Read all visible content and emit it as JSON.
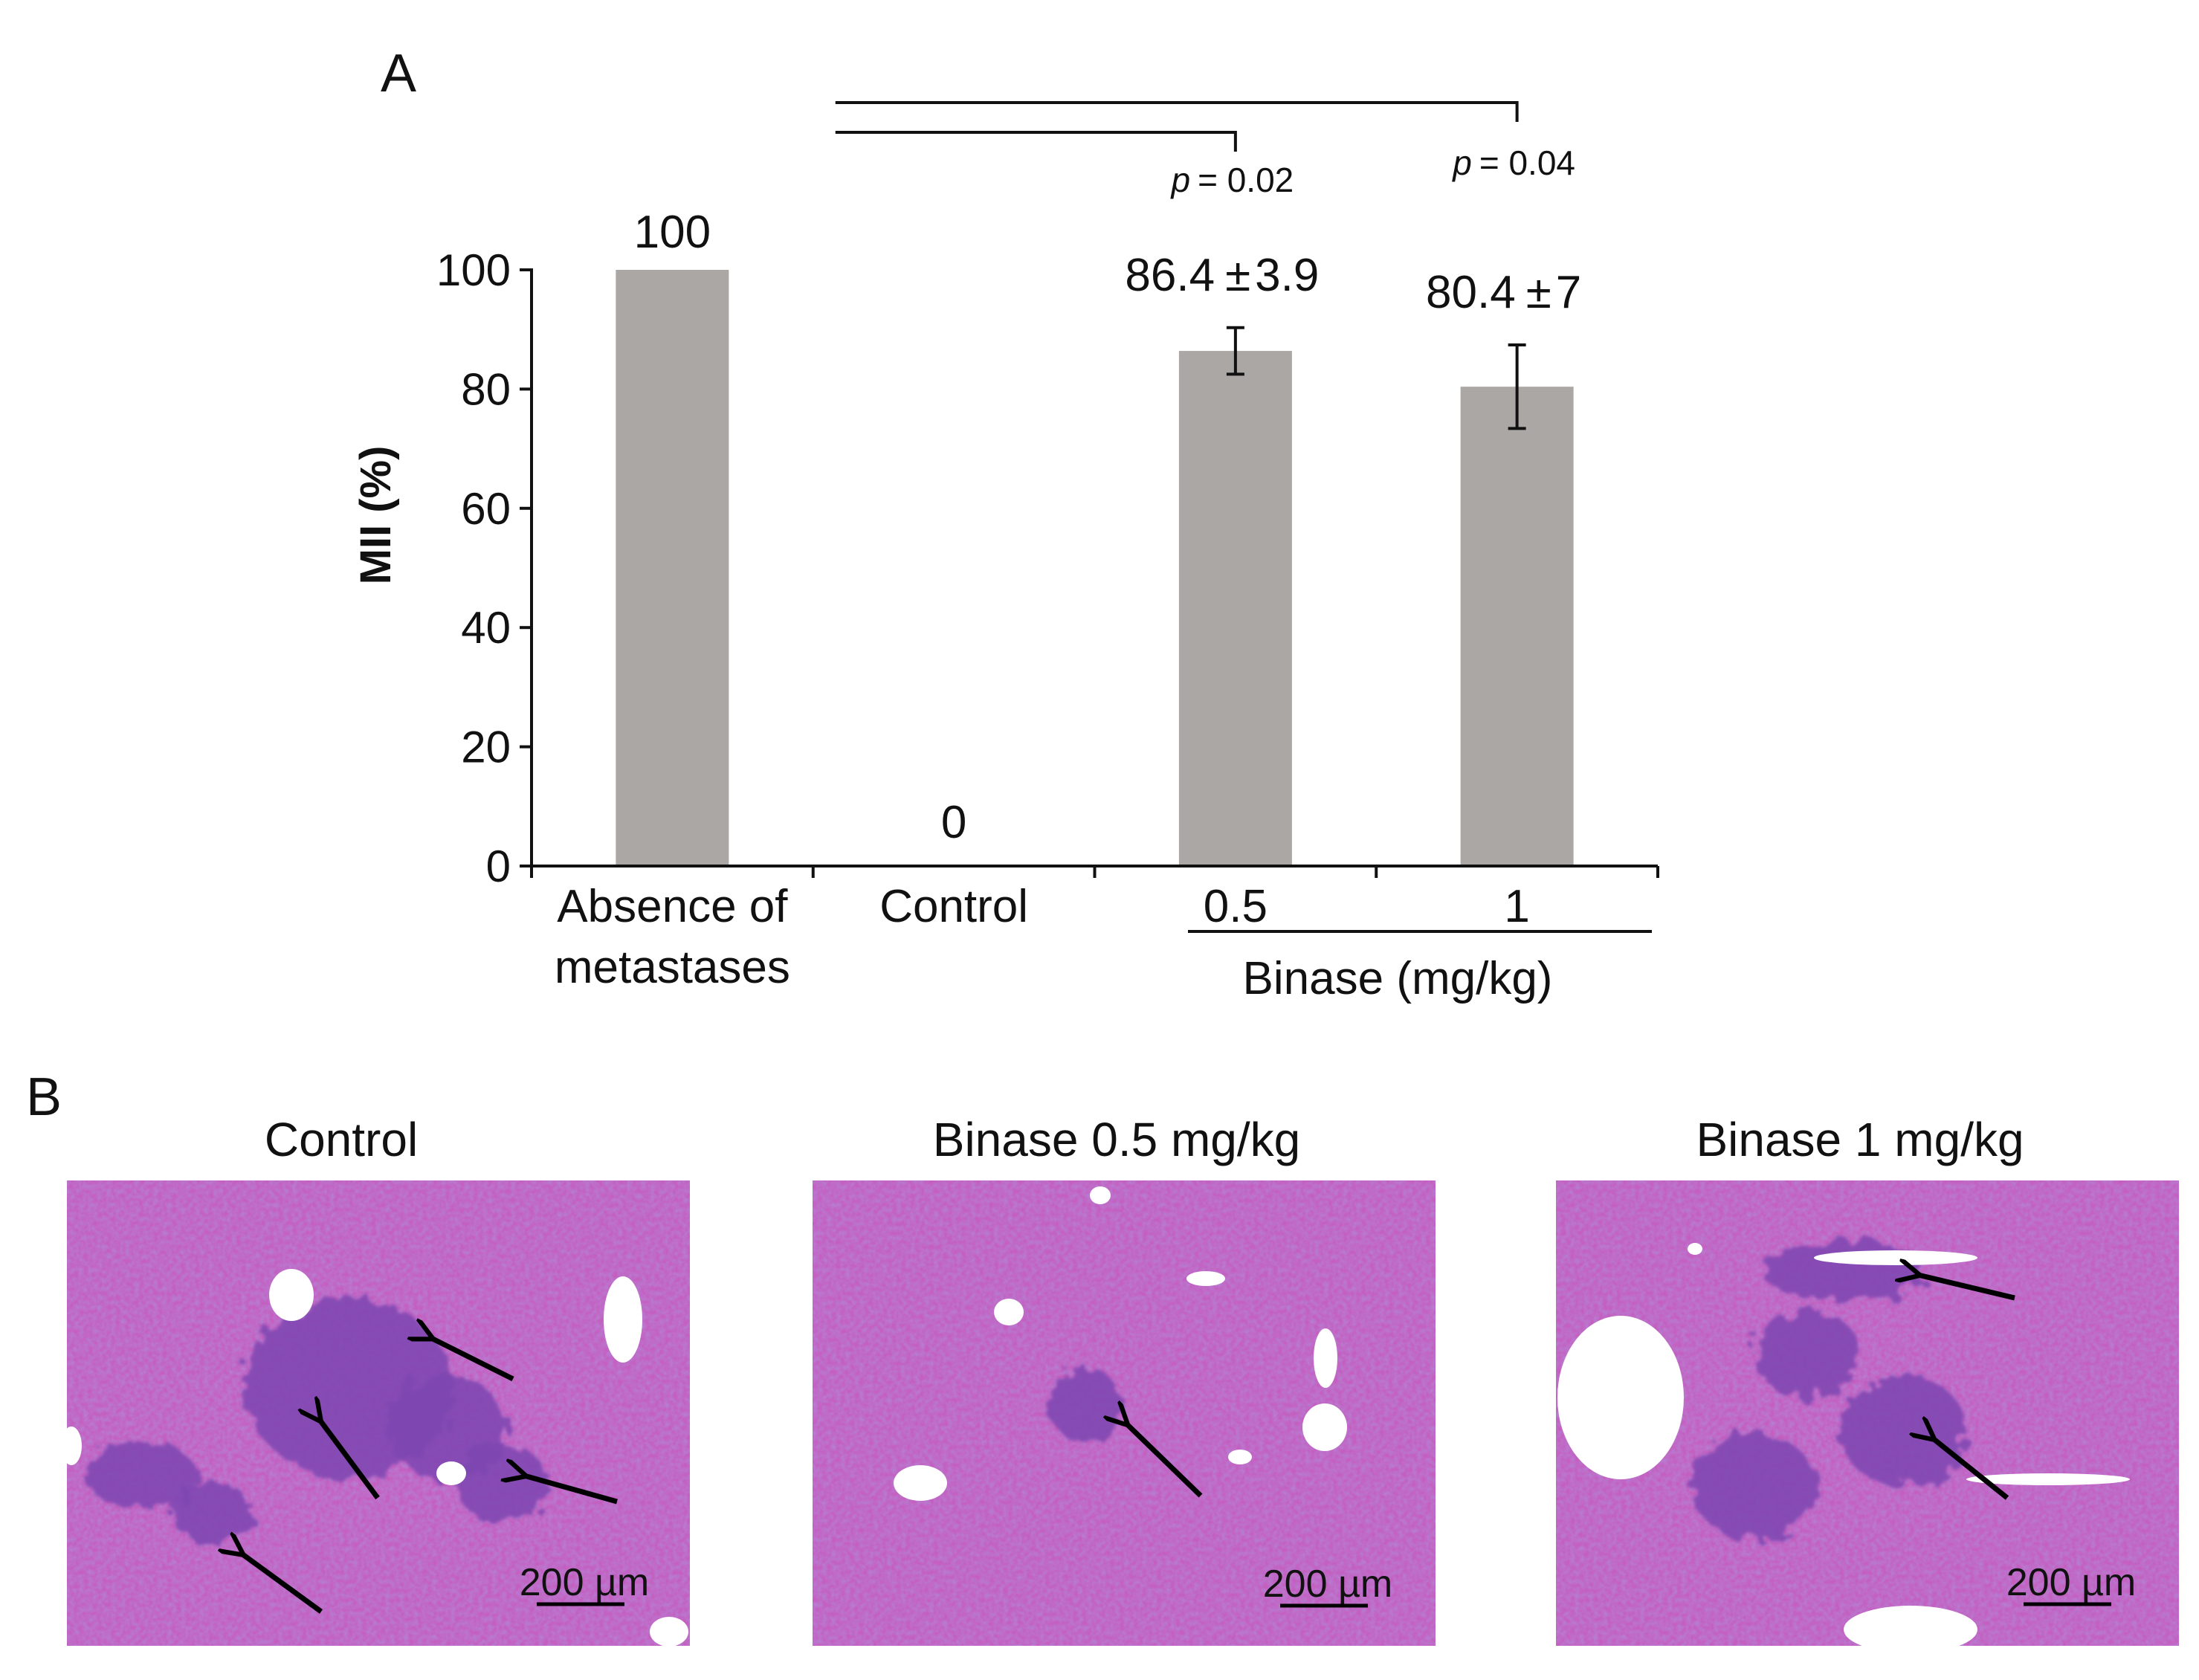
{
  "panel_a": {
    "label": "A",
    "chart_data": {
      "type": "bar",
      "categories": [
        "Absence of metastases",
        "Control",
        "0.5",
        "1"
      ],
      "category_label_lines": [
        [
          "Absence of",
          "metastases"
        ],
        [
          "Control"
        ],
        [
          "0.5"
        ],
        [
          "1"
        ]
      ],
      "values": [
        100,
        0,
        86.4,
        80.4
      ],
      "errors": [
        null,
        null,
        3.9,
        7
      ],
      "value_labels": [
        "100",
        "0",
        "86.4",
        "80.4"
      ],
      "error_labels": [
        "",
        "",
        "±",
        "±"
      ],
      "error_values": [
        "",
        "",
        "3.9",
        "7"
      ],
      "xlabel": "",
      "ylabel": "MII (%)",
      "ylim": [
        0,
        100
      ],
      "yticks": [
        0,
        20,
        40,
        60,
        80,
        100
      ],
      "group_label": "Binase (mg/kg)",
      "group_categories": [
        "0.5",
        "1"
      ],
      "bar_color": "#aba7a5",
      "grid": false,
      "significance": [
        {
          "from": "Control",
          "to": "0.5",
          "p_symbol": "p",
          "p_text": "= 0.02"
        },
        {
          "from": "Control",
          "to": "1",
          "p_symbol": "p",
          "p_text": "= 0.04"
        }
      ]
    }
  },
  "panel_b": {
    "label": "B",
    "images": [
      {
        "title": "Control",
        "scale_bar": "200 µm",
        "arrow_count": 4
      },
      {
        "title": "Binase 0.5 mg/kg",
        "scale_bar": "200 µm",
        "arrow_count": 1
      },
      {
        "title": "Binase 1 mg/kg",
        "scale_bar": "200 µm",
        "arrow_count": 2
      }
    ],
    "tissue_colors": {
      "base": "#c45fc0",
      "nodule": "#7c45b0",
      "vessel": "#ffffff"
    }
  }
}
